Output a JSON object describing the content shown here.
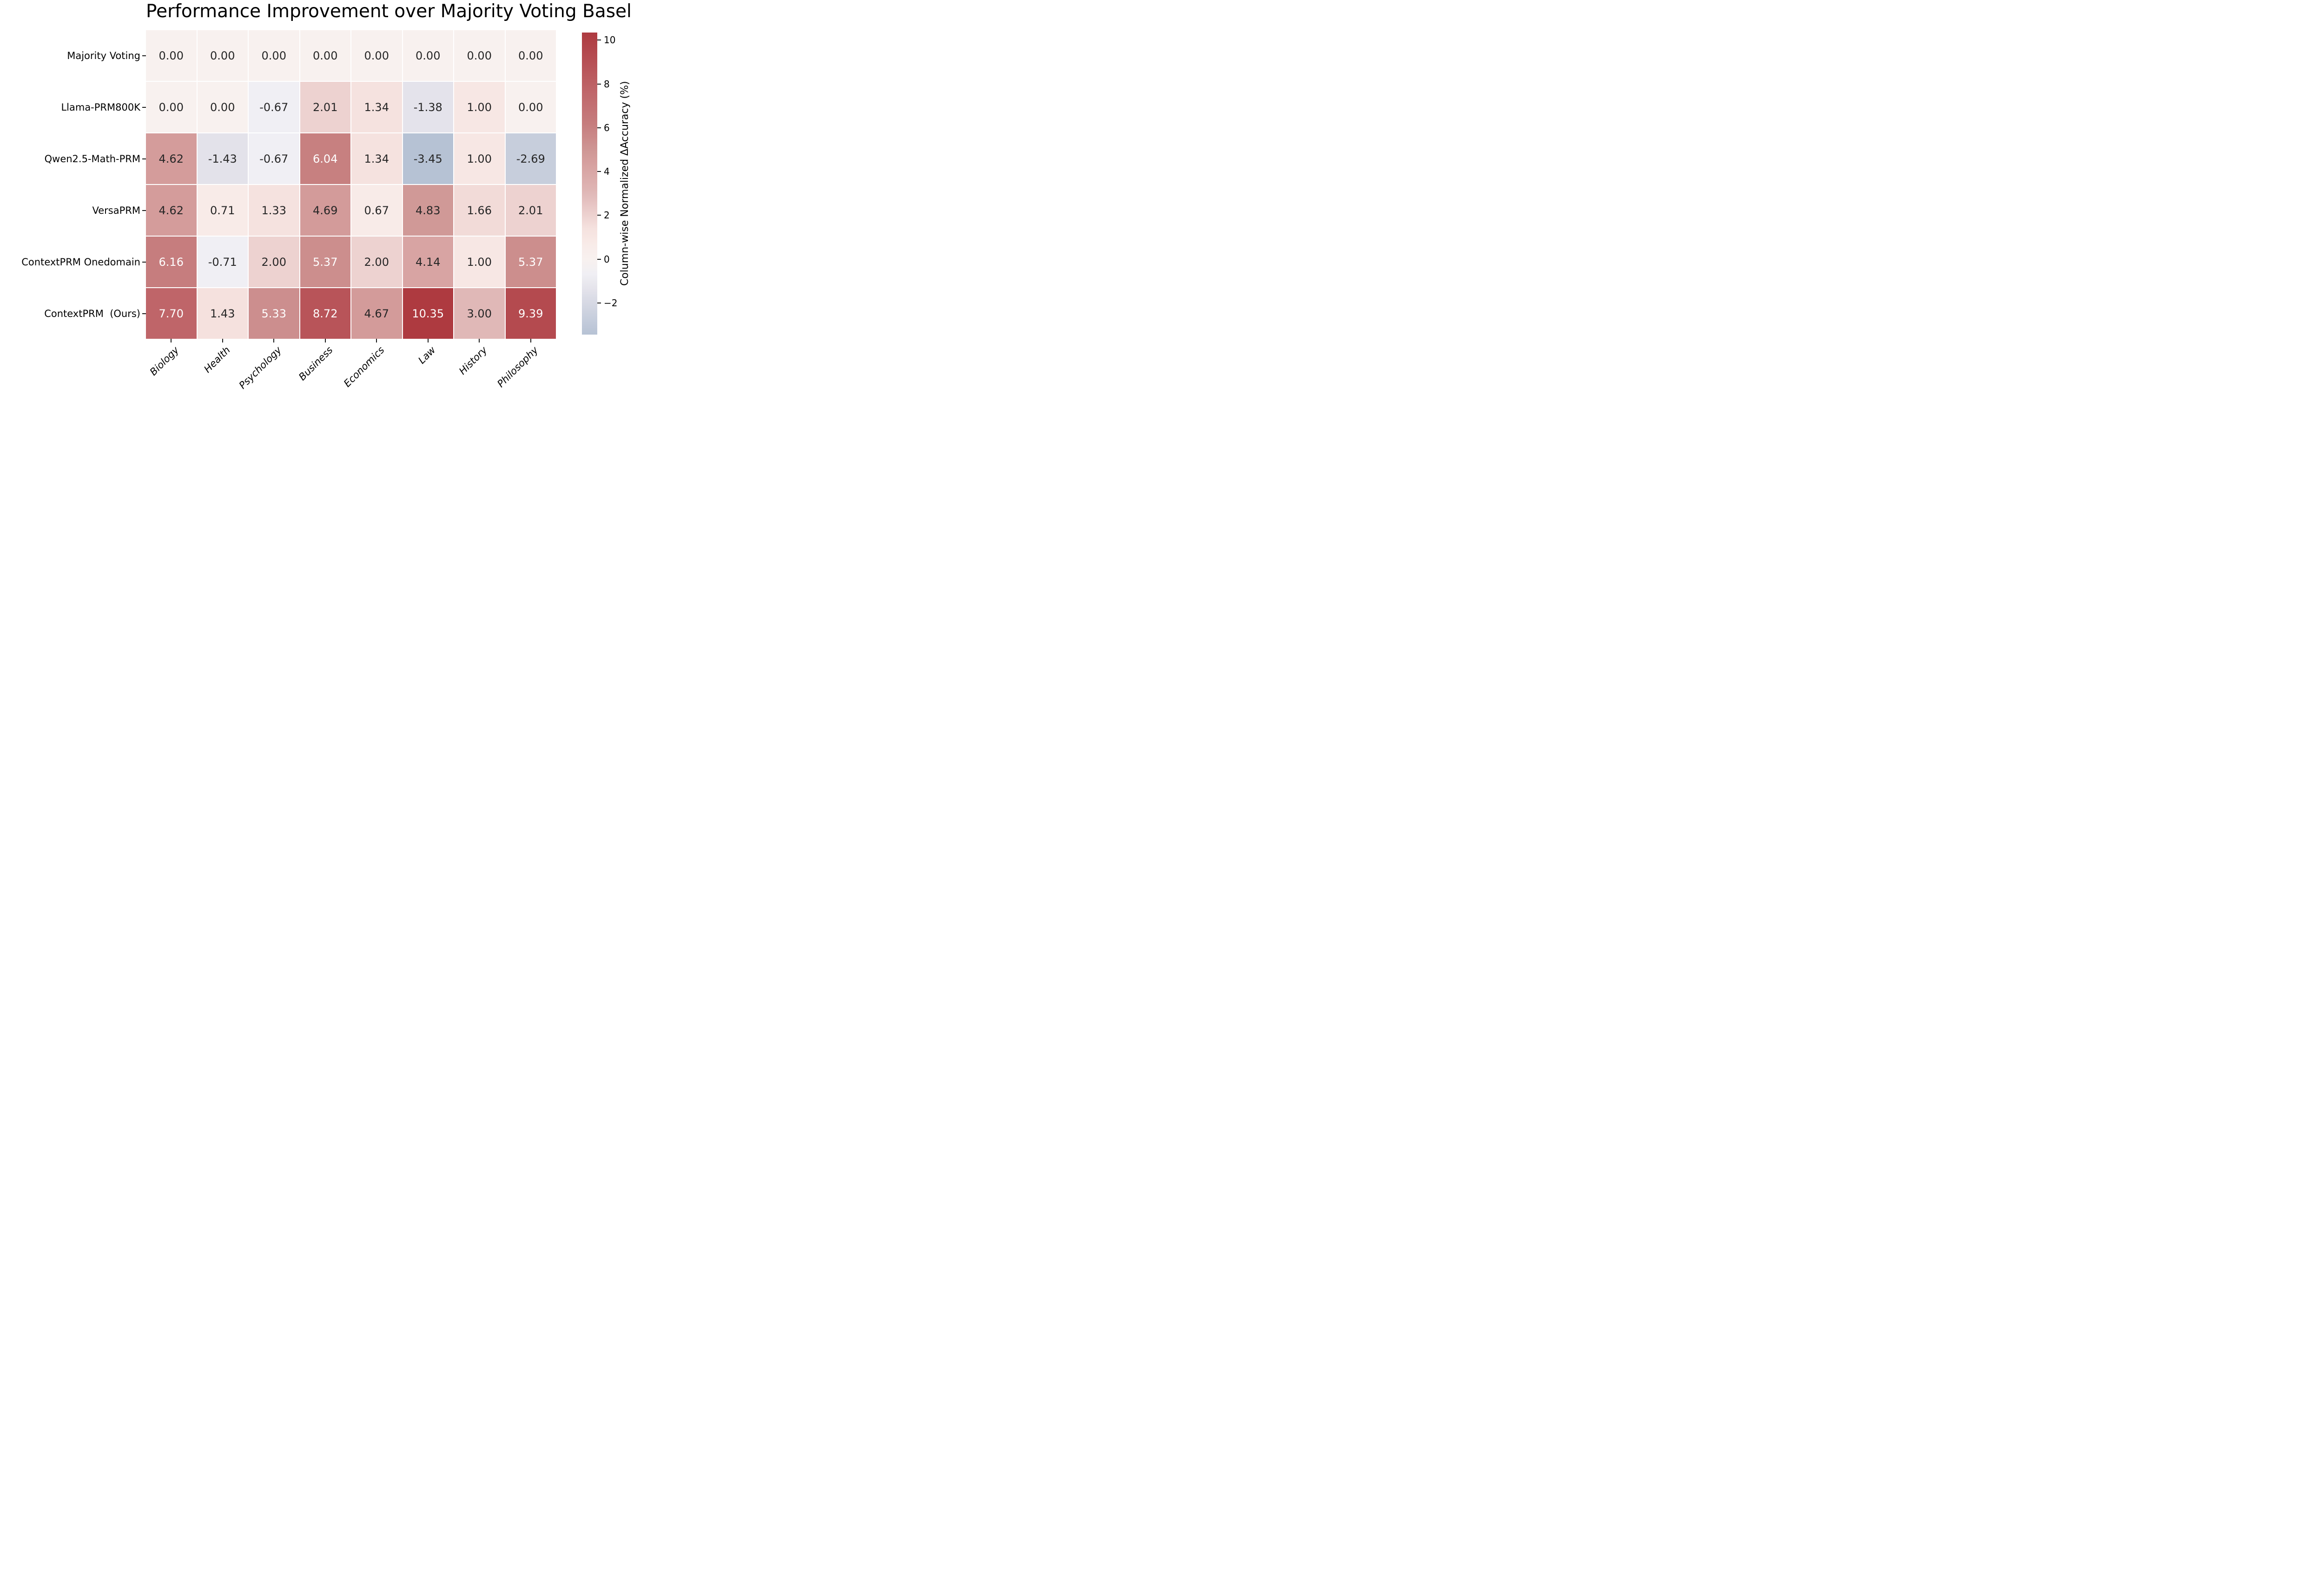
{
  "title": "Performance Improvement over Majority Voting Baseline",
  "chart_data": {
    "type": "heatmap",
    "title": "Performance Improvement over Majority Voting Baseline",
    "x_categories": [
      "Biology",
      "Health",
      "Psychology",
      "Business",
      "Economics",
      "Law",
      "History",
      "Philosophy"
    ],
    "y_categories": [
      "Majority Voting",
      "Llama-PRM800K",
      "Qwen2.5-Math-PRM",
      "VersaPRM",
      "ContextPRM Onedomain",
      "ContextPRM  (Ours)"
    ],
    "values": [
      [
        0.0,
        0.0,
        0.0,
        0.0,
        0.0,
        0.0,
        0.0,
        0.0
      ],
      [
        0.0,
        0.0,
        -0.67,
        2.01,
        1.34,
        -1.38,
        1.0,
        0.0
      ],
      [
        4.62,
        -1.43,
        -0.67,
        6.04,
        1.34,
        -3.45,
        1.0,
        -2.69
      ],
      [
        4.62,
        0.71,
        1.33,
        4.69,
        0.67,
        4.83,
        1.66,
        2.01
      ],
      [
        6.16,
        -0.71,
        2.0,
        5.37,
        2.0,
        4.14,
        1.0,
        5.37
      ],
      [
        7.7,
        1.43,
        5.33,
        8.72,
        4.67,
        10.35,
        3.0,
        9.39
      ]
    ],
    "annotation_decimals": 2,
    "colorbar": {
      "label": "Column-wise Normalized ΔAccuracy (%)",
      "ticks": [
        10,
        8,
        6,
        4,
        2,
        0,
        -2
      ],
      "vmin": -3.45,
      "vmax": 10.35
    },
    "colormap_anchors": [
      [
        -3.45,
        "#b6c2d4"
      ],
      [
        -1.43,
        "#e3e2ea"
      ],
      [
        -0.71,
        "#f0eff4"
      ],
      [
        0.0,
        "#f8f1ef"
      ],
      [
        0.71,
        "#f8ebe8"
      ],
      [
        1.43,
        "#f5e1de"
      ],
      [
        3.0,
        "#e0b8b7"
      ],
      [
        4.62,
        "#d49c9b"
      ],
      [
        4.83,
        "#d09997"
      ],
      [
        6.16,
        "#c67d7e"
      ],
      [
        7.7,
        "#bf6569"
      ],
      [
        10.35,
        "#ae3a40"
      ]
    ],
    "white_text_threshold": 5.0,
    "annotation_text_dark": "#262626",
    "annotation_text_light": "#ffffff",
    "legend_position": "right",
    "grid_on": false
  }
}
